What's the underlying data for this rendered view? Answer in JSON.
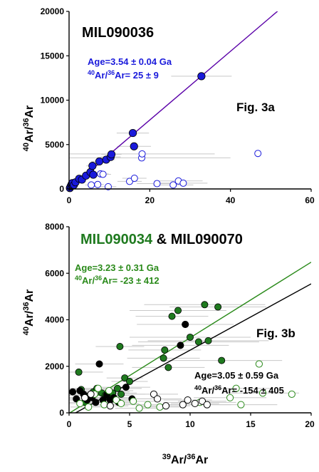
{
  "chart_data": [
    {
      "type": "scatter",
      "panel": "a",
      "title": "MIL090036",
      "figure_label": "Fig. 3a",
      "ylabel_parts": [
        "40",
        "Ar/",
        "36",
        "Ar"
      ],
      "xlim": [
        0,
        60
      ],
      "ylim": [
        0,
        20000
      ],
      "xticks": [
        0,
        20,
        40,
        60
      ],
      "yticks": [
        0,
        5000,
        10000,
        15000,
        20000
      ],
      "grid": false,
      "annotation": {
        "line1": "Age=3.54 ± 0.04 Ga",
        "line2_sup1": "40",
        "line2_a": "Ar/",
        "line2_sup2": "36",
        "line2_b": "Ar= 25 ± 9",
        "color": "#1a1adb"
      },
      "fit_line": {
        "slope": 387,
        "intercept": 25,
        "color": "#5a00a8"
      },
      "series": [
        {
          "marker": "filled",
          "color": "#1a1adb",
          "points": [
            {
              "x": 0.2,
              "y": 100
            },
            {
              "x": 0.4,
              "y": 300
            },
            {
              "x": 0.6,
              "y": 500
            },
            {
              "x": 0.8,
              "y": 650
            },
            {
              "x": 1.2,
              "y": 450
            },
            {
              "x": 1.6,
              "y": 750
            },
            {
              "x": 2.5,
              "y": 1150
            },
            {
              "x": 3.2,
              "y": 1050
            },
            {
              "x": 4.2,
              "y": 1500
            },
            {
              "x": 5.3,
              "y": 1900
            },
            {
              "x": 5.8,
              "y": 2600
            },
            {
              "x": 6.0,
              "y": 1600
            },
            {
              "x": 7.5,
              "y": 3100
            },
            {
              "x": 9.2,
              "y": 3300
            },
            {
              "x": 10.3,
              "y": 3600
            },
            {
              "x": 10.5,
              "y": 3900
            },
            {
              "x": 15.8,
              "y": 6300
            },
            {
              "x": 16.1,
              "y": 4800
            },
            {
              "x": 32.8,
              "y": 12700
            }
          ],
          "xerr": [
            0.3,
            0.3,
            0.3,
            0.4,
            0.5,
            0.6,
            0.8,
            0.9,
            1.2,
            1.5,
            1.5,
            1.8,
            2.0,
            2.2,
            2.5,
            2.5,
            4.0,
            4.2,
            7.5
          ]
        },
        {
          "marker": "open",
          "color": "#1a1adb",
          "points": [
            {
              "x": 7.8,
              "y": 1700
            },
            {
              "x": 8.4,
              "y": 1650
            },
            {
              "x": 5.5,
              "y": 450
            },
            {
              "x": 7.1,
              "y": 500
            },
            {
              "x": 9.7,
              "y": 250
            },
            {
              "x": 15.0,
              "y": 850
            },
            {
              "x": 16.2,
              "y": 1200
            },
            {
              "x": 18.0,
              "y": 3500
            },
            {
              "x": 18.1,
              "y": 3950
            },
            {
              "x": 21.8,
              "y": 600
            },
            {
              "x": 25.8,
              "y": 450
            },
            {
              "x": 27.1,
              "y": 900
            },
            {
              "x": 28.3,
              "y": 650
            },
            {
              "x": 46.8,
              "y": 4000
            }
          ],
          "xerr": [
            2,
            2,
            1.5,
            1.5,
            2,
            3,
            3,
            22,
            18,
            5,
            5,
            6,
            6,
            0
          ]
        }
      ]
    },
    {
      "type": "scatter",
      "panel": "b",
      "title_green": "MIL090034",
      "title_black": " & MIL090070",
      "figure_label": "Fig. 3b",
      "ylabel_parts": [
        "40",
        "Ar/",
        "36",
        "Ar"
      ],
      "xlabel_parts": [
        "39",
        "Ar/",
        "36",
        "Ar"
      ],
      "xlim": [
        0,
        20
      ],
      "ylim": [
        0,
        8000
      ],
      "xticks": [
        0,
        5,
        10,
        15,
        20
      ],
      "yticks": [
        0,
        2000,
        4000,
        6000,
        8000
      ],
      "grid": false,
      "annotation_green": {
        "line1": "Age=3.23 ± 0.31 Ga",
        "line2_sup1": "40",
        "line2_a": "Ar/",
        "line2_sup2": "36",
        "line2_b": "Ar= -23 ± 412",
        "color": "#2a8a1a"
      },
      "annotation_black": {
        "line1": "Age=3.05 ± 0.59 Ga",
        "line2_sup1": "40",
        "line2_a": "Ar/",
        "line2_sup2": "36",
        "line2_b": "Ar= -154 ± 405",
        "color": "#000000"
      },
      "fit_lines": [
        {
          "slope": 325,
          "intercept": -23,
          "color": "#2a8a1a"
        },
        {
          "slope": 285,
          "intercept": -154,
          "color": "#000000"
        }
      ],
      "series": [
        {
          "marker": "filled",
          "color": "#1f7a1f",
          "points": [
            {
              "x": 0.8,
              "y": 1750
            },
            {
              "x": 1.0,
              "y": 1000
            },
            {
              "x": 1.3,
              "y": 450
            },
            {
              "x": 1.7,
              "y": 750
            },
            {
              "x": 2.0,
              "y": 900
            },
            {
              "x": 2.3,
              "y": 1050
            },
            {
              "x": 2.7,
              "y": 850
            },
            {
              "x": 3.0,
              "y": 750
            },
            {
              "x": 3.3,
              "y": 650
            },
            {
              "x": 3.6,
              "y": 850
            },
            {
              "x": 4.0,
              "y": 1050
            },
            {
              "x": 4.3,
              "y": 800
            },
            {
              "x": 4.6,
              "y": 1500
            },
            {
              "x": 5.0,
              "y": 1350
            },
            {
              "x": 4.2,
              "y": 2850
            },
            {
              "x": 7.8,
              "y": 2350
            },
            {
              "x": 7.9,
              "y": 2700
            },
            {
              "x": 8.2,
              "y": 1950
            },
            {
              "x": 8.5,
              "y": 4150
            },
            {
              "x": 9.0,
              "y": 4400
            },
            {
              "x": 9.6,
              "y": 3800
            },
            {
              "x": 10.0,
              "y": 3250
            },
            {
              "x": 10.7,
              "y": 3050
            },
            {
              "x": 11.2,
              "y": 4650
            },
            {
              "x": 11.5,
              "y": 3100
            },
            {
              "x": 12.3,
              "y": 4550
            },
            {
              "x": 12.6,
              "y": 2250
            }
          ],
          "xerr": [
            2,
            3,
            2,
            2.5,
            3,
            2.5,
            2,
            2,
            1.5,
            2,
            2,
            2,
            1.5,
            1.5,
            2,
            3,
            3,
            3,
            3,
            4,
            4,
            5,
            5,
            5,
            5,
            4,
            5
          ]
        },
        {
          "marker": "filled",
          "color": "#000000",
          "points": [
            {
              "x": 0.3,
              "y": 900
            },
            {
              "x": 0.6,
              "y": 600
            },
            {
              "x": 0.9,
              "y": 950
            },
            {
              "x": 1.2,
              "y": 800
            },
            {
              "x": 1.5,
              "y": 550
            },
            {
              "x": 1.9,
              "y": 650
            },
            {
              "x": 2.2,
              "y": 450
            },
            {
              "x": 2.5,
              "y": 2100
            },
            {
              "x": 2.8,
              "y": 550
            },
            {
              "x": 3.1,
              "y": 750
            },
            {
              "x": 3.4,
              "y": 550
            },
            {
              "x": 3.7,
              "y": 650
            },
            {
              "x": 4.1,
              "y": 450
            },
            {
              "x": 4.7,
              "y": 1100
            },
            {
              "x": 5.2,
              "y": 600
            },
            {
              "x": 9.2,
              "y": 2900
            },
            {
              "x": 9.6,
              "y": 3800
            }
          ],
          "xerr": [
            1.5,
            2,
            2,
            2,
            1.5,
            2,
            1.5,
            2,
            1.5,
            1.5,
            1.5,
            1.5,
            1.5,
            2,
            2,
            4,
            0
          ]
        },
        {
          "marker": "open",
          "color": "#2a8a1a",
          "points": [
            {
              "x": 0.9,
              "y": 400
            },
            {
              "x": 1.6,
              "y": 250
            },
            {
              "x": 2.1,
              "y": 800
            },
            {
              "x": 2.4,
              "y": 1050
            },
            {
              "x": 2.9,
              "y": 350
            },
            {
              "x": 3.3,
              "y": 950
            },
            {
              "x": 3.9,
              "y": 550
            },
            {
              "x": 4.3,
              "y": 400
            },
            {
              "x": 5.3,
              "y": 500
            },
            {
              "x": 5.8,
              "y": 200
            },
            {
              "x": 6.5,
              "y": 350
            },
            {
              "x": 7.5,
              "y": 250
            },
            {
              "x": 10.8,
              "y": 450
            },
            {
              "x": 13.3,
              "y": 650
            },
            {
              "x": 13.8,
              "y": 1050
            },
            {
              "x": 14.2,
              "y": 350
            },
            {
              "x": 15.7,
              "y": 2100
            },
            {
              "x": 16.0,
              "y": 850
            },
            {
              "x": 18.4,
              "y": 800
            }
          ],
          "xerr": [
            1.5,
            1.5,
            2,
            2,
            1.5,
            2,
            1.5,
            1.5,
            2,
            2,
            2,
            2,
            3,
            3,
            3,
            3,
            0,
            3,
            0
          ]
        },
        {
          "marker": "open",
          "color": "#000000",
          "points": [
            {
              "x": 1.3,
              "y": 650
            },
            {
              "x": 1.8,
              "y": 800
            },
            {
              "x": 3.4,
              "y": 300
            },
            {
              "x": 7.0,
              "y": 800
            },
            {
              "x": 7.3,
              "y": 600
            },
            {
              "x": 8.0,
              "y": 300
            },
            {
              "x": 9.4,
              "y": 350
            },
            {
              "x": 9.8,
              "y": 550
            },
            {
              "x": 10.4,
              "y": 400
            },
            {
              "x": 11.0,
              "y": 500
            },
            {
              "x": 11.4,
              "y": 350
            }
          ],
          "xerr": [
            1.5,
            1.5,
            1.5,
            2,
            2,
            2,
            2,
            2,
            2,
            2,
            2
          ]
        }
      ]
    }
  ]
}
